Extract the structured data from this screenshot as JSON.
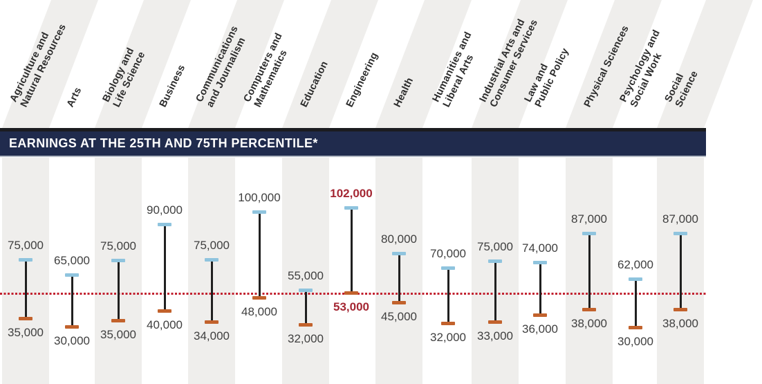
{
  "banner": {
    "title": "EARNINGS AT THE 25TH AND 75TH PERCENTILE*",
    "bg_color": "#202b4d",
    "top_border_color": "#1b1c20",
    "bottom_border_color": "#b3bac4",
    "text_color": "#ffffff"
  },
  "colors": {
    "stripe": "#efeeec",
    "range_line": "#202020",
    "p75_cap": "#8fc4de",
    "p25_cap": "#c2622c",
    "value_label": "#3f3f3f",
    "category_label": "#2c2c2c",
    "highlight": "#a42733",
    "reference_line": "#c2202f"
  },
  "chart_data": {
    "type": "dumbbell-range",
    "title": "EARNINGS AT THE 25TH AND 75TH PERCENTILE*",
    "units": "USD per year",
    "grid": false,
    "legend_position": "none",
    "ylim": [
      25000,
      110000
    ],
    "categories": [
      "Agriculture and\nNatural Resources",
      "Arts",
      "Biology and\nLife Science",
      "Business",
      "Communications\nand Journalism",
      "Computers and\nMathematics",
      "Education",
      "Engineering",
      "Health",
      "Humanities and\nLiberal Arts",
      "Industrial Arts and\nConsumer Services",
      "Law and\nPublic Policy",
      "Physical Sciences",
      "Psychology and\nSocial Work",
      "Social Science"
    ],
    "series": [
      {
        "name": "75th percentile",
        "marker_color": "#8fc4de",
        "values": [
          75000,
          65000,
          75000,
          90000,
          75000,
          100000,
          55000,
          102000,
          80000,
          70000,
          75000,
          74000,
          87000,
          62000,
          87000
        ]
      },
      {
        "name": "25th percentile",
        "marker_color": "#c2622c",
        "values": [
          35000,
          30000,
          35000,
          40000,
          34000,
          48000,
          32000,
          53000,
          45000,
          32000,
          33000,
          36000,
          38000,
          30000,
          38000
        ]
      }
    ],
    "value_labels_75": [
      "75,000",
      "65,000",
      "75,000",
      "90,000",
      "75,000",
      "100,000",
      "55,000",
      "102,000",
      "80,000",
      "70,000",
      "75,000",
      "74,000",
      "87,000",
      "62,000",
      "87,000"
    ],
    "value_labels_25": [
      "35,000",
      "30,000",
      "35,000",
      "40,000",
      "34,000",
      "48,000",
      "32,000",
      "53,000",
      "45,000",
      "32,000",
      "33,000",
      "36,000",
      "38,000",
      "30,000",
      "38,000"
    ],
    "highlighted_category": "Engineering",
    "highlight_color": "#a42733",
    "striped_categories": [
      "Agriculture and Natural Resources",
      "Biology and Life Science",
      "Communications and Journalism",
      "Education",
      "Health",
      "Industrial Arts and Consumer Services",
      "Physical Sciences",
      "Social Science"
    ],
    "reference_line": {
      "approx_value": 50000,
      "style": "dotted",
      "color": "#c2202f"
    }
  }
}
